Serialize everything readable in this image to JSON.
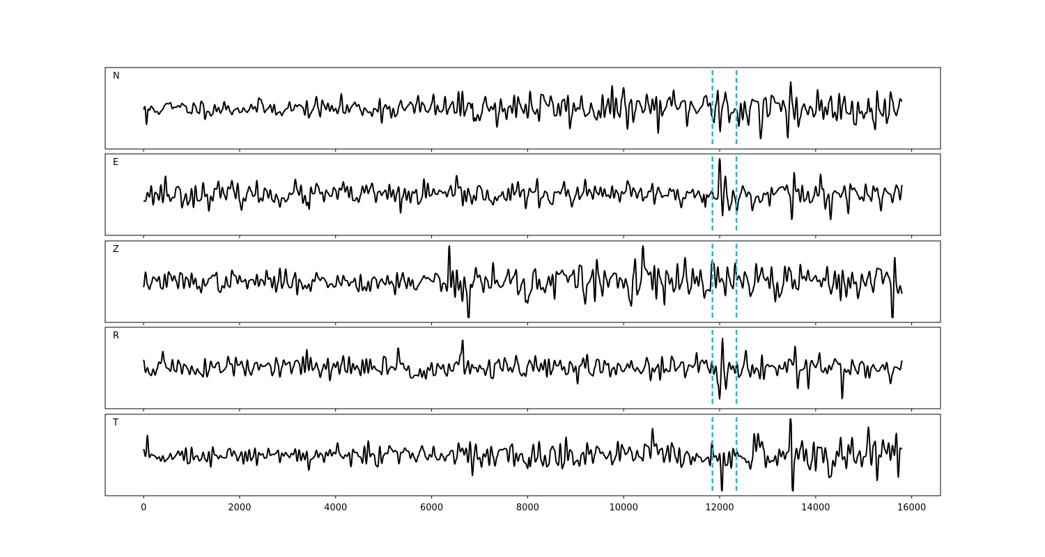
{
  "chart_data": {
    "type": "line",
    "layout": "stacked-panels",
    "xlim": [
      -800,
      16600
    ],
    "x_ticks": [
      0,
      2000,
      4000,
      6000,
      8000,
      10000,
      12000,
      14000,
      16000
    ],
    "x_tick_labels": [
      "0",
      "2000",
      "4000",
      "6000",
      "8000",
      "10000",
      "12000",
      "14000",
      "16000"
    ],
    "sample_count": 15800,
    "line_color": "#000000",
    "marker_color": "#17becf",
    "markers": [
      {
        "x": 11850,
        "style": "dashed"
      },
      {
        "x": 12350,
        "style": "dashed"
      }
    ],
    "panels": [
      {
        "label": "N",
        "seed": 11,
        "ylim": [
          -1.0,
          1.0
        ],
        "noise_envelope": [
          [
            0,
            0.22
          ],
          [
            3000,
            0.22
          ],
          [
            5000,
            0.3
          ],
          [
            6000,
            0.35
          ],
          [
            8000,
            0.45
          ],
          [
            10000,
            0.45
          ],
          [
            11800,
            0.42
          ],
          [
            12400,
            0.5
          ],
          [
            15800,
            0.5
          ]
        ],
        "peaks": [
          [
            60,
            -0.55
          ],
          [
            6850,
            0.6
          ],
          [
            6870,
            -0.5
          ],
          [
            8050,
            0.55
          ],
          [
            11960,
            0.72
          ],
          [
            12010,
            -0.55
          ],
          [
            12120,
            0.55
          ],
          [
            12200,
            -0.4
          ],
          [
            12850,
            -0.7
          ],
          [
            13480,
            0.92
          ],
          [
            13420,
            -0.75
          ],
          [
            14500,
            0.5
          ],
          [
            15100,
            0.45
          ]
        ]
      },
      {
        "label": "E",
        "seed": 23,
        "ylim": [
          -1.0,
          1.0
        ],
        "noise_envelope": [
          [
            0,
            0.3
          ],
          [
            15800,
            0.32
          ]
        ],
        "peaks": [
          [
            460,
            0.52
          ],
          [
            3450,
            -0.45
          ],
          [
            5350,
            -0.5
          ],
          [
            6650,
            -0.45
          ],
          [
            11700,
            -0.45
          ],
          [
            12000,
            0.85
          ],
          [
            12060,
            -0.72
          ],
          [
            12120,
            0.35
          ],
          [
            13500,
            -0.55
          ],
          [
            13550,
            0.62
          ],
          [
            14100,
            0.55
          ],
          [
            14300,
            -0.4
          ]
        ]
      },
      {
        "label": "Z",
        "seed": 37,
        "ylim": [
          -1.0,
          1.0
        ],
        "noise_envelope": [
          [
            0,
            0.25
          ],
          [
            6000,
            0.3
          ],
          [
            6300,
            0.55
          ],
          [
            15800,
            0.45
          ]
        ],
        "peaks": [
          [
            6370,
            0.9
          ],
          [
            6500,
            -0.4
          ],
          [
            6600,
            0.5
          ],
          [
            6780,
            -0.72
          ],
          [
            8000,
            -0.6
          ],
          [
            10400,
            0.55
          ],
          [
            10850,
            -0.7
          ],
          [
            15650,
            0.6
          ],
          [
            15600,
            -0.55
          ]
        ]
      },
      {
        "label": "R",
        "seed": 51,
        "ylim": [
          -1.0,
          1.0
        ],
        "noise_envelope": [
          [
            0,
            0.3
          ],
          [
            15800,
            0.32
          ]
        ],
        "peaks": [
          [
            400,
            0.45
          ],
          [
            3400,
            0.45
          ],
          [
            5300,
            0.42
          ],
          [
            6650,
            0.5
          ],
          [
            12000,
            -0.75
          ],
          [
            12060,
            0.95
          ],
          [
            12130,
            -0.5
          ],
          [
            12550,
            0.48
          ],
          [
            13570,
            0.62
          ],
          [
            13620,
            -0.5
          ],
          [
            13850,
            -0.55
          ],
          [
            14550,
            -0.6
          ]
        ]
      },
      {
        "label": "T",
        "seed": 73,
        "ylim": [
          -1.0,
          1.0
        ],
        "noise_envelope": [
          [
            0,
            0.22
          ],
          [
            3000,
            0.25
          ],
          [
            6000,
            0.3
          ],
          [
            8000,
            0.42
          ],
          [
            15800,
            0.45
          ]
        ],
        "peaks": [
          [
            80,
            0.45
          ],
          [
            6800,
            0.6
          ],
          [
            6850,
            -0.6
          ],
          [
            8050,
            -0.55
          ],
          [
            12050,
            -0.75
          ],
          [
            12000,
            0.5
          ],
          [
            13480,
            0.88
          ],
          [
            13520,
            -0.85
          ],
          [
            15100,
            0.55
          ]
        ]
      }
    ]
  }
}
